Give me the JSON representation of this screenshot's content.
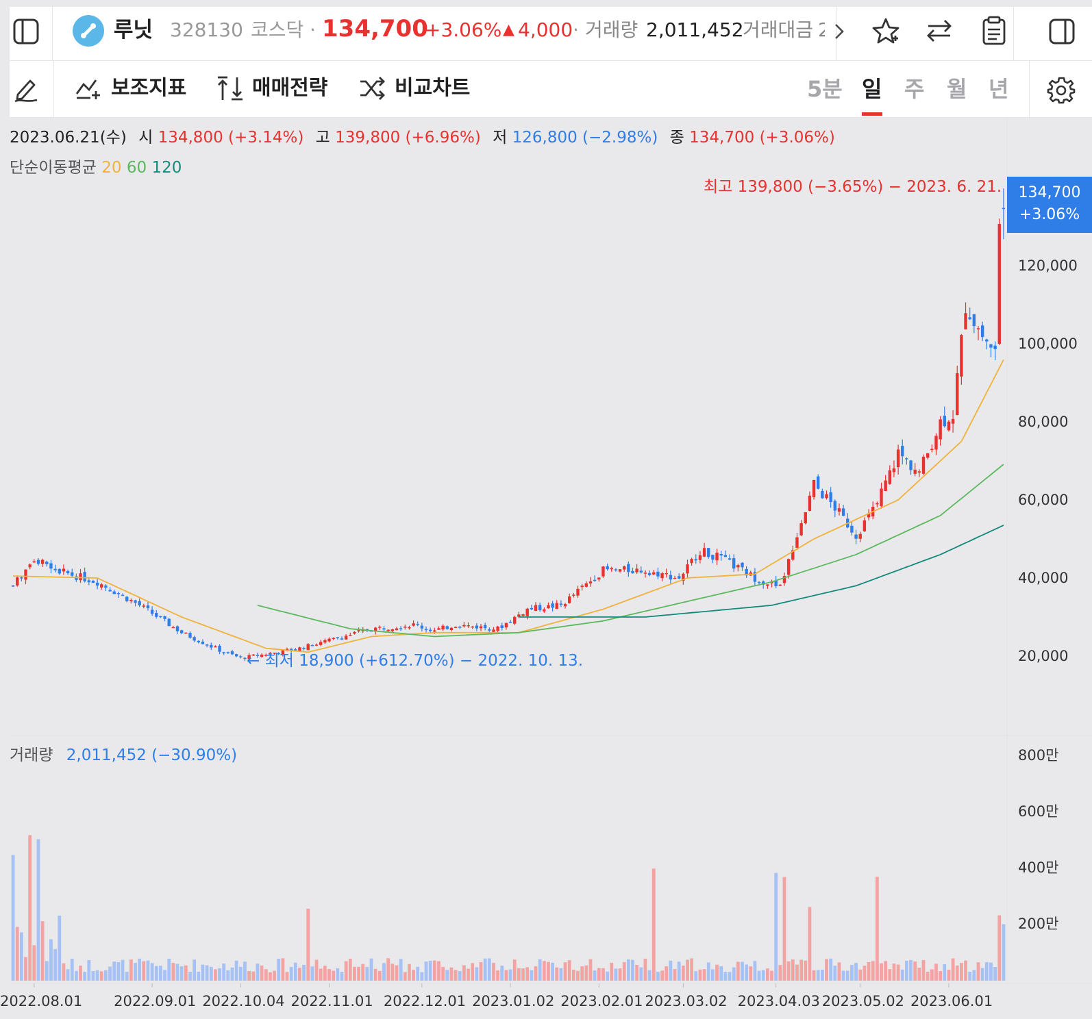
{
  "header": {
    "stock_name": "루닛",
    "code": "328130",
    "market": "코스닥",
    "dot1": "·",
    "price": "134,700",
    "change_pct": "+3.06%",
    "change_arrow": "▲",
    "change_abs": "4,000",
    "dot2": "·",
    "volume_label": "거래량",
    "volume_value": "2,011,452",
    "amount_label": "거래대금",
    "amount_value_cut": "2",
    "more_icon": "chevron-right-icon",
    "icons": [
      "sidebar-left-icon",
      "star-icon",
      "swap-icon",
      "clipboard-icon",
      "sidebar-right-icon"
    ]
  },
  "toolbar": {
    "draw_icon": "pencil-icon",
    "items": [
      {
        "icon": "indicator-add-icon",
        "label": "보조지표"
      },
      {
        "icon": "trade-strategy-icon",
        "label": "매매전략"
      },
      {
        "icon": "shuffle-icon",
        "label": "비교차트"
      }
    ],
    "periods": [
      {
        "label": "5분",
        "active": false
      },
      {
        "label": "일",
        "active": true
      },
      {
        "label": "주",
        "active": false
      },
      {
        "label": "월",
        "active": false
      },
      {
        "label": "년",
        "active": false
      }
    ],
    "settings_icon": "gear-icon"
  },
  "ohlc": {
    "date": "2023.06.21(수)",
    "open_label": "시",
    "open_value": "134,800 (+3.14%)",
    "high_label": "고",
    "high_value": "139,800 (+6.96%)",
    "low_label": "저",
    "low_value": "126,800 (−2.98%)",
    "close_label": "종",
    "close_value": "134,700 (+3.06%)"
  },
  "ma_legend": {
    "label": "단순이동평균",
    "periods": [
      "20",
      "60",
      "120"
    ],
    "colors": [
      "#f0b23a",
      "#5cb85c",
      "#138a7c"
    ]
  },
  "price_tag": {
    "price": "134,700",
    "pct": "+3.06%"
  },
  "high_note": "최고 139,800 (−3.65%) − 2023. 6. 21. →",
  "low_note": "← 최저 18,900 (+612.70%) − 2022. 10. 13.",
  "volume_legend": {
    "label": "거래량",
    "value": "2,011,452 (−30.90%)"
  },
  "colors": {
    "up": "#e8322f",
    "down": "#2f7ee8",
    "vol_up": "#f4a3a3",
    "vol_down": "#a6c1f3",
    "accent": "#e8322f"
  },
  "chart_data": {
    "type": "candlestick",
    "price_axis": {
      "ticks": [
        "120,000",
        "100,000",
        "80,000",
        "60,000",
        "40,000",
        "20,000"
      ],
      "values": [
        120000,
        100000,
        80000,
        60000,
        40000,
        20000
      ]
    },
    "volume_axis": {
      "ticks": [
        "800만",
        "600만",
        "400만",
        "200만"
      ],
      "values": [
        8000000,
        6000000,
        4000000,
        2000000
      ]
    },
    "x_ticks": [
      "2022.08.01",
      "2022.09.01",
      "2022.10.04",
      "2022.11.01",
      "2022.12.01",
      "2023.01.02",
      "2023.02.01",
      "2023.03.02",
      "2023.04.03",
      "2023.05.02",
      "2023.06.01"
    ],
    "x_tick_index": [
      5,
      33,
      54,
      75,
      97,
      118,
      139,
      159,
      181,
      201,
      222
    ],
    "candles_count": 236,
    "ma20_anchor": [
      [
        0,
        40500
      ],
      [
        20,
        40000
      ],
      [
        40,
        30000
      ],
      [
        60,
        22000
      ],
      [
        70,
        21000
      ],
      [
        85,
        25000
      ],
      [
        100,
        26000
      ],
      [
        120,
        26000
      ],
      [
        140,
        32000
      ],
      [
        160,
        40000
      ],
      [
        176,
        41000
      ],
      [
        190,
        50000
      ],
      [
        210,
        60000
      ],
      [
        225,
        75000
      ],
      [
        236,
        98000
      ]
    ],
    "ma60_anchor": [
      [
        58,
        33000
      ],
      [
        80,
        27000
      ],
      [
        100,
        25000
      ],
      [
        120,
        26000
      ],
      [
        140,
        29000
      ],
      [
        160,
        34000
      ],
      [
        180,
        39000
      ],
      [
        200,
        46000
      ],
      [
        220,
        56000
      ],
      [
        236,
        70000
      ]
    ],
    "ma120_anchor": [
      [
        120,
        30000
      ],
      [
        150,
        30000
      ],
      [
        180,
        33000
      ],
      [
        200,
        38000
      ],
      [
        220,
        46000
      ],
      [
        236,
        54000
      ]
    ],
    "close_anchor": [
      [
        0,
        38000
      ],
      [
        5,
        45000
      ],
      [
        10,
        42000
      ],
      [
        20,
        39000
      ],
      [
        30,
        33000
      ],
      [
        40,
        26000
      ],
      [
        50,
        21000
      ],
      [
        54,
        19500
      ],
      [
        60,
        20500
      ],
      [
        68,
        22000
      ],
      [
        75,
        24000
      ],
      [
        85,
        27000
      ],
      [
        95,
        28000
      ],
      [
        100,
        26500
      ],
      [
        105,
        28000
      ],
      [
        115,
        27000
      ],
      [
        122,
        32000
      ],
      [
        130,
        33000
      ],
      [
        140,
        42000
      ],
      [
        150,
        42000
      ],
      [
        158,
        40000
      ],
      [
        163,
        47000
      ],
      [
        168,
        45000
      ],
      [
        176,
        40000
      ],
      [
        182,
        37500
      ],
      [
        185,
        48000
      ],
      [
        190,
        64000
      ],
      [
        195,
        58000
      ],
      [
        200,
        51000
      ],
      [
        205,
        59000
      ],
      [
        210,
        72000
      ],
      [
        215,
        67000
      ],
      [
        220,
        80000
      ],
      [
        223,
        82000
      ],
      [
        226,
        110000
      ],
      [
        230,
        102000
      ],
      [
        233,
        98000
      ],
      [
        235,
        134700
      ]
    ]
  }
}
